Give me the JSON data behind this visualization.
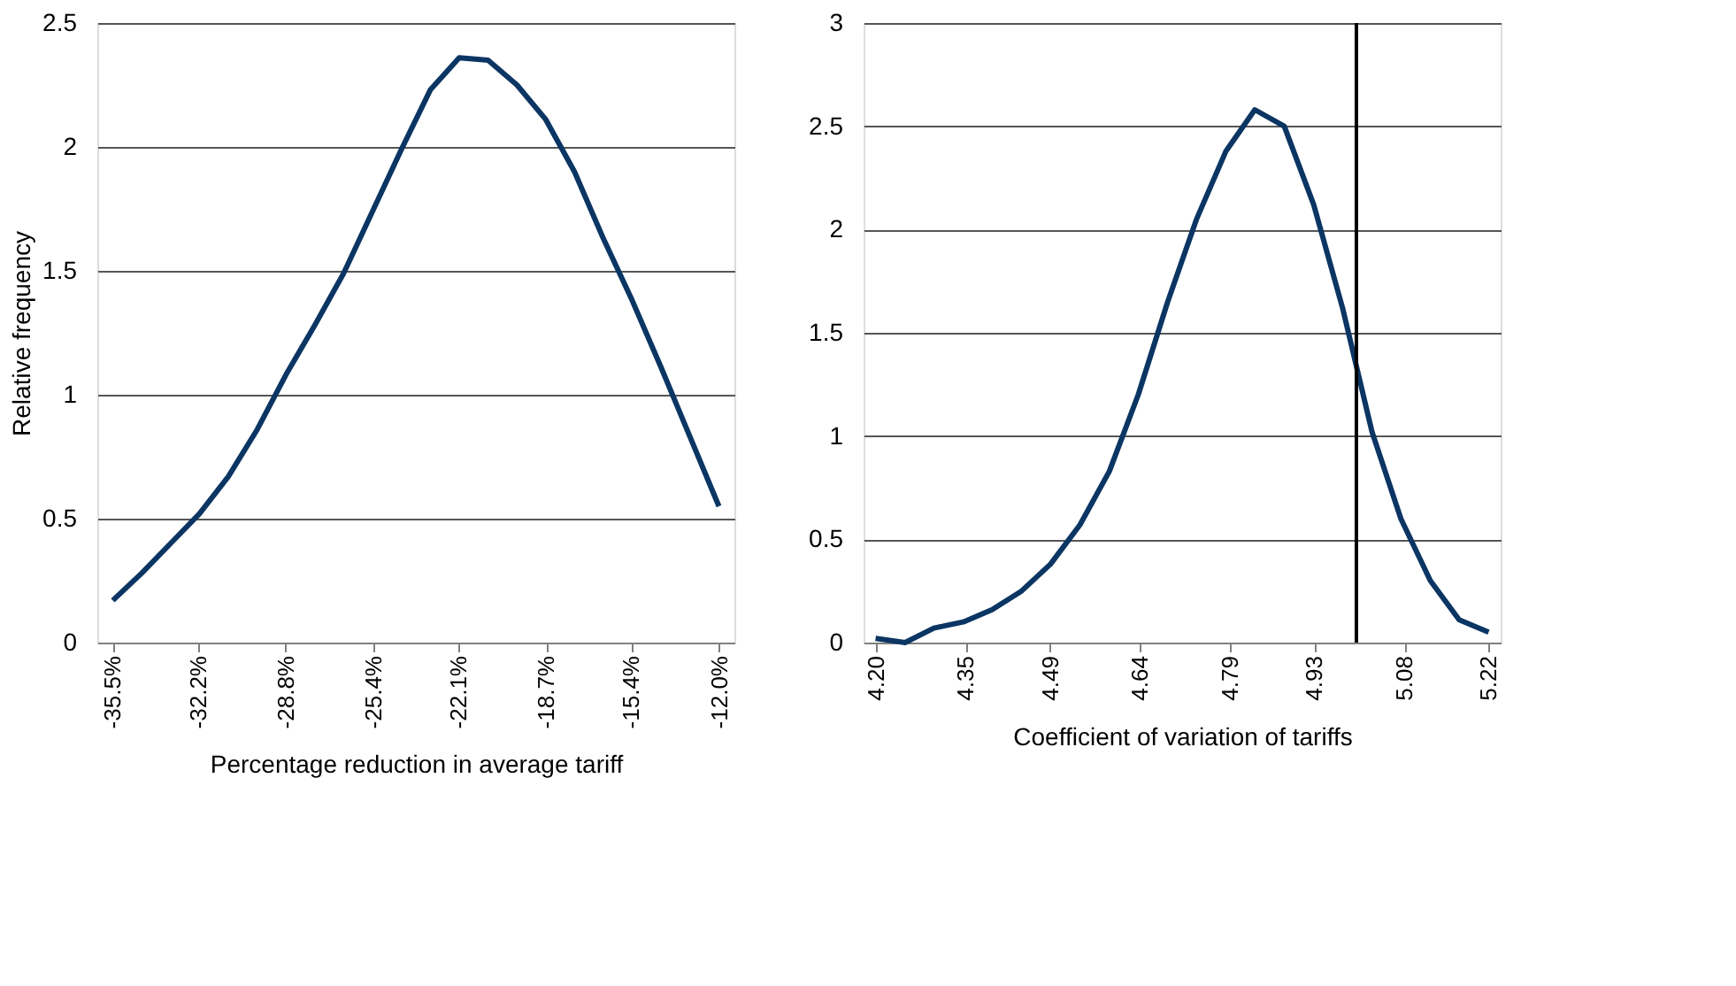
{
  "chart_data": [
    {
      "type": "line",
      "xlabel": "Percentage reduction in average tariff",
      "ylabel": "Relative frequency",
      "x": [
        -35.5,
        -34.38,
        -33.26,
        -32.14,
        -31.02,
        -29.9,
        -28.79,
        -27.67,
        -26.55,
        -25.43,
        -24.31,
        -23.19,
        -22.07,
        -20.95,
        -19.83,
        -18.71,
        -17.6,
        -16.48,
        -15.36,
        -14.24,
        -13.12,
        -12.0
      ],
      "series": [
        {
          "color": "#0b3563",
          "values": [
            0.17,
            0.28,
            0.4,
            0.52,
            0.67,
            0.86,
            1.08,
            1.28,
            1.49,
            1.74,
            1.99,
            2.23,
            2.36,
            2.35,
            2.25,
            2.11,
            1.9,
            1.63,
            1.38,
            1.11,
            0.83,
            0.55
          ]
        }
      ],
      "xlim": [
        -36.1,
        -11.4
      ],
      "xticks": [
        {
          "value": -35.5,
          "label": "-35.5%"
        },
        {
          "value": -32.2,
          "label": "-32.2%"
        },
        {
          "value": -28.8,
          "label": "-28.8%"
        },
        {
          "value": -25.4,
          "label": "-25.4%"
        },
        {
          "value": -22.1,
          "label": "-22.1%"
        },
        {
          "value": -18.7,
          "label": "-18.7%"
        },
        {
          "value": -15.4,
          "label": "-15.4%"
        },
        {
          "value": -12.0,
          "label": "-12.0%"
        }
      ],
      "ylim": [
        0,
        2.5
      ],
      "yticks": [
        0,
        0.5,
        1,
        1.5,
        2,
        2.5
      ],
      "grid": "y",
      "line_style": "solid",
      "marker": "none"
    },
    {
      "type": "line",
      "xlabel": "Coefficient of variation of tariffs",
      "x": [
        4.2,
        4.249,
        4.297,
        4.346,
        4.394,
        4.443,
        4.491,
        4.54,
        4.589,
        4.637,
        4.686,
        4.734,
        4.783,
        4.831,
        4.88,
        4.929,
        4.977,
        5.026,
        5.074,
        5.123,
        5.171,
        5.22
      ],
      "series": [
        {
          "color": "#0b3563",
          "values": [
            0.02,
            0.0,
            0.07,
            0.1,
            0.16,
            0.25,
            0.38,
            0.57,
            0.83,
            1.2,
            1.65,
            2.05,
            2.38,
            2.58,
            2.5,
            2.12,
            1.62,
            1.02,
            0.6,
            0.3,
            0.11,
            0.05
          ]
        }
      ],
      "xlim": [
        4.18,
        5.24
      ],
      "xticks": [
        {
          "value": 4.2,
          "label": "4.20"
        },
        {
          "value": 4.35,
          "label": "4.35"
        },
        {
          "value": 4.49,
          "label": "4.49"
        },
        {
          "value": 4.64,
          "label": "4.64"
        },
        {
          "value": 4.79,
          "label": "4.79"
        },
        {
          "value": 4.93,
          "label": "4.93"
        },
        {
          "value": 5.08,
          "label": "5.08"
        },
        {
          "value": 5.22,
          "label": "5.22"
        }
      ],
      "ylim": [
        0,
        3
      ],
      "yticks": [
        0,
        0.5,
        1,
        1.5,
        2,
        2.5,
        3
      ],
      "grid": "y",
      "line_style": "solid",
      "marker": "none",
      "ref_lines": [
        {
          "axis": "x",
          "value": 5.0,
          "color": "#000000"
        }
      ]
    }
  ]
}
